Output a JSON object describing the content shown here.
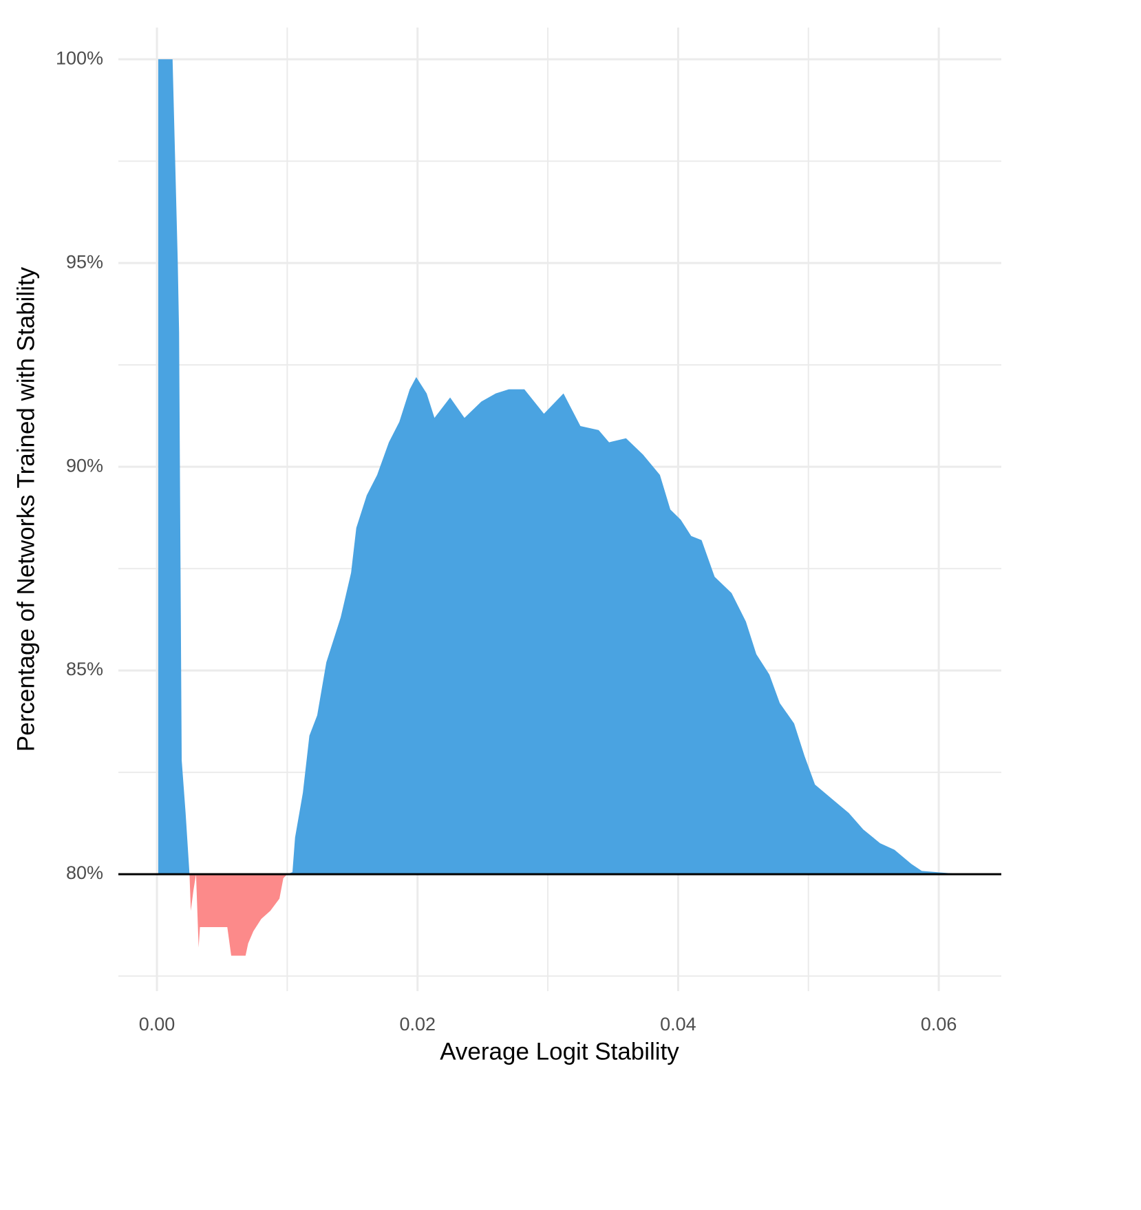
{
  "chart_data": {
    "type": "area",
    "x_label": "Average Logit Stability",
    "y_label": "Percentage of Networks Trained with Stability",
    "x": [
      0.0001,
      0.0012,
      0.0016,
      0.0017,
      0.0019,
      0.0022,
      0.0025,
      0.0026,
      0.0028,
      0.003,
      0.0032,
      0.0033,
      0.0054,
      0.0057,
      0.0068,
      0.007,
      0.0074,
      0.008,
      0.0087,
      0.0094,
      0.0097,
      0.01,
      0.0104,
      0.0106,
      0.0112,
      0.0117,
      0.0123,
      0.013,
      0.0141,
      0.0149,
      0.0153,
      0.0161,
      0.0169,
      0.0178,
      0.0186,
      0.0194,
      0.0199,
      0.0207,
      0.0213,
      0.0225,
      0.0236,
      0.0249,
      0.026,
      0.027,
      0.0282,
      0.0297,
      0.0312,
      0.0325,
      0.0339,
      0.0347,
      0.036,
      0.0373,
      0.0386,
      0.0394,
      0.0402,
      0.041,
      0.0418,
      0.0428,
      0.0441,
      0.0452,
      0.046,
      0.047,
      0.0478,
      0.0489,
      0.0497,
      0.0505,
      0.0518,
      0.0531,
      0.0542,
      0.0555,
      0.0566,
      0.0579,
      0.0587,
      0.0618
    ],
    "values": [
      100,
      100,
      95,
      93.3,
      82.8,
      81.5,
      80,
      79.1,
      79.6,
      80,
      78.2,
      78.7,
      78.7,
      78.0,
      78.0,
      78.3,
      78.6,
      78.9,
      79.1,
      79.4,
      79.9,
      80,
      80.05,
      80.9,
      82,
      83.4,
      83.9,
      85.2,
      86.3,
      87.4,
      88.5,
      89.3,
      89.8,
      90.6,
      91.1,
      91.9,
      92.2,
      91.8,
      91.2,
      91.7,
      91.2,
      91.6,
      91.8,
      91.9,
      91.9,
      91.3,
      91.8,
      91,
      90.9,
      90.6,
      90.7,
      90.3,
      89.8,
      88.95,
      88.7,
      88.3,
      88.2,
      87.3,
      86.9,
      86.2,
      85.4,
      84.9,
      84.2,
      83.7,
      82.9,
      82.2,
      81.85,
      81.5,
      81.1,
      80.76,
      80.6,
      80.25,
      80.08,
      80.0
    ],
    "baseline": 80,
    "color_above": "#4aa3e1",
    "color_below": "#fc8a8a",
    "xlim": [
      -0.00296,
      0.0648
    ],
    "ylim": [
      77.13,
      100.78
    ],
    "xticks": [
      {
        "value": 0,
        "label": "0.00"
      },
      0.02,
      0.04,
      0.06
    ],
    "yticks": [
      {
        "value": 80,
        "label": "80%"
      },
      {
        "value": 85,
        "label": "85%"
      },
      {
        "value": 90,
        "label": "90%"
      },
      {
        "value": 95,
        "label": "95%"
      },
      {
        "value": 100,
        "label": "100%"
      }
    ],
    "x_minor_ticks": [
      0.01,
      0.03,
      0.05
    ],
    "y_minor_ticks": [
      77.5,
      82.5,
      87.5,
      92.5,
      97.5
    ],
    "grid": true
  }
}
